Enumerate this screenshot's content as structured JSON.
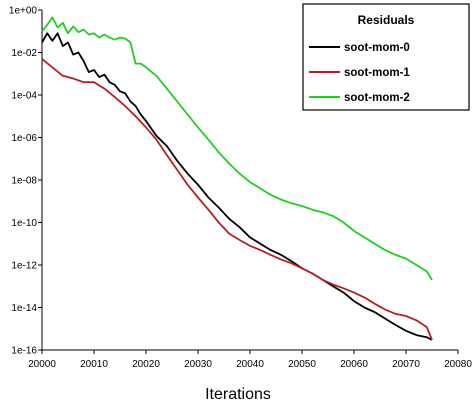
{
  "chart_data": {
    "type": "line",
    "xlabel": "Iterations",
    "ylabel": "",
    "yscale": "log",
    "xlim": [
      20000,
      20080
    ],
    "ylim": [
      1e-16,
      1
    ],
    "x_ticks": [
      "20000",
      "20010",
      "20020",
      "20030",
      "20040",
      "20050",
      "20060",
      "20070",
      "20080"
    ],
    "y_ticks": [
      "1e+00",
      "1e-02",
      "1e-04",
      "1e-06",
      "1e-08",
      "1e-10",
      "1e-12",
      "1e-14",
      "1e-16"
    ],
    "grid": false,
    "legend": {
      "title": "Residuals",
      "position": "top-right"
    },
    "series": [
      {
        "name": "soot-mom-0",
        "color": "#000000",
        "x": [
          20000,
          20001,
          20002,
          20003,
          20004,
          20005,
          20006,
          20007,
          20008,
          20009,
          20010,
          20011,
          20012,
          20013,
          20014,
          20015,
          20016,
          20017,
          20018,
          20019,
          20020,
          20022,
          20024,
          20026,
          20028,
          20030,
          20032,
          20034,
          20036,
          20038,
          20040,
          20042,
          20044,
          20046,
          20048,
          20050,
          20052,
          20054,
          20056,
          20058,
          20060,
          20062,
          20064,
          20066,
          20068,
          20070,
          20072,
          20074,
          20075
        ],
        "y": [
          0.03,
          0.08,
          0.035,
          0.08,
          0.02,
          0.03,
          0.008,
          0.01,
          0.004,
          0.0012,
          0.0015,
          0.0007,
          0.0009,
          0.0004,
          0.0003,
          0.00015,
          0.00012,
          5e-05,
          3e-05,
          1.2e-05,
          6e-06,
          1.2e-06,
          4e-07,
          8e-08,
          2e-08,
          6e-09,
          1.5e-09,
          5e-10,
          1.5e-10,
          6e-11,
          2e-11,
          1e-11,
          5e-12,
          3e-12,
          1.5e-12,
          7e-13,
          4e-13,
          2e-13,
          1e-13,
          5e-14,
          2e-14,
          1e-14,
          6e-15,
          3e-15,
          1.5e-15,
          8e-16,
          5e-16,
          4e-16,
          3e-16
        ]
      },
      {
        "name": "soot-mom-1",
        "color": "#b22222",
        "x": [
          20000,
          20002,
          20004,
          20006,
          20008,
          20010,
          20012,
          20014,
          20016,
          20018,
          20020,
          20022,
          20024,
          20026,
          20028,
          20030,
          20032,
          20034,
          20036,
          20038,
          20040,
          20042,
          20044,
          20046,
          20048,
          20050,
          20052,
          20054,
          20056,
          20058,
          20060,
          20062,
          20064,
          20066,
          20068,
          20070,
          20072,
          20074,
          20075
        ],
        "y": [
          0.005,
          0.002,
          0.0008,
          0.0006,
          0.0004,
          0.0004,
          0.0002,
          8e-05,
          3e-05,
          1e-05,
          3e-06,
          8e-07,
          1.5e-07,
          3e-08,
          6e-09,
          1.5e-09,
          4e-10,
          1e-10,
          3e-11,
          1.5e-11,
          8e-12,
          5e-12,
          3e-12,
          1.8e-12,
          1.2e-12,
          7e-13,
          4e-13,
          2e-13,
          1.2e-13,
          8e-14,
          5e-14,
          3e-14,
          1.5e-14,
          8e-15,
          5e-15,
          4e-15,
          2.5e-15,
          1.2e-15,
          3e-16
        ]
      },
      {
        "name": "soot-mom-2",
        "color": "#22cc22",
        "x": [
          20000,
          20001,
          20002,
          20003,
          20004,
          20005,
          20006,
          20007,
          20008,
          20009,
          20010,
          20011,
          20012,
          20013,
          20014,
          20015,
          20016,
          20017,
          20018,
          20019,
          20020,
          20022,
          20024,
          20026,
          20028,
          20030,
          20032,
          20034,
          20036,
          20038,
          20040,
          20042,
          20044,
          20046,
          20048,
          20050,
          20052,
          20054,
          20056,
          20058,
          20060,
          20062,
          20064,
          20066,
          20068,
          20070,
          20072,
          20074,
          20075
        ],
        "y": [
          0.1,
          0.2,
          0.45,
          0.15,
          0.25,
          0.08,
          0.17,
          0.09,
          0.12,
          0.07,
          0.08,
          0.05,
          0.07,
          0.05,
          0.04,
          0.05,
          0.045,
          0.03,
          0.003,
          0.003,
          0.002,
          0.0008,
          0.0002,
          5e-05,
          1.2e-05,
          3e-06,
          8e-07,
          2e-07,
          6e-08,
          2e-08,
          8e-09,
          4e-09,
          2e-09,
          1.2e-09,
          8e-10,
          6e-10,
          4e-10,
          3e-10,
          2e-10,
          1e-10,
          4e-11,
          2e-11,
          1e-11,
          5e-12,
          3e-12,
          2e-12,
          1e-12,
          5e-13,
          2e-13
        ]
      }
    ]
  }
}
